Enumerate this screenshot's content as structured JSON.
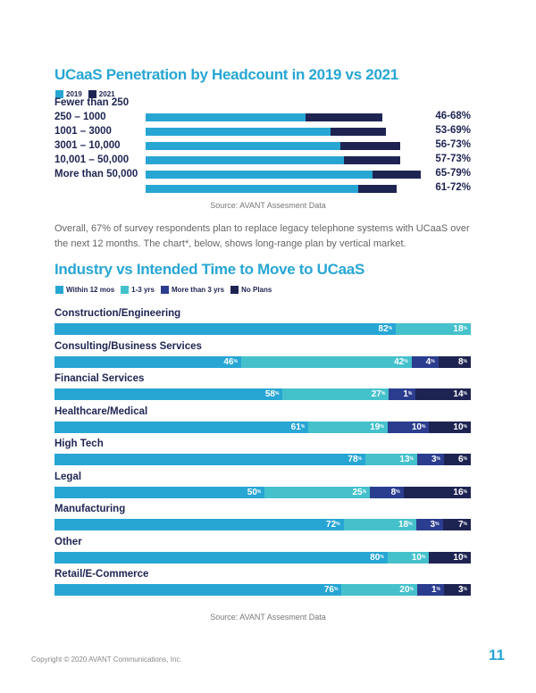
{
  "chart_data": [
    {
      "type": "bar",
      "title": "UCaaS Penetration by Headcount in 2019 vs 2021",
      "legend": [
        "2019",
        "2021"
      ],
      "colors": {
        "2019": "#27a6d4",
        "2021": "#1e2452"
      },
      "categories": [
        "Fewer than 250",
        "250 – 1000",
        "1001 – 3000",
        "3001 – 10,000",
        "10,001 – 50,000",
        "More than 50,000"
      ],
      "value_labels": [
        "46-68%",
        "53-69%",
        "56-73%",
        "57-73%",
        "65-79%",
        "61-72%"
      ],
      "series": [
        {
          "name": "2019",
          "values": [
            46,
            53,
            56,
            57,
            65,
            61
          ]
        },
        {
          "name": "2021",
          "values": [
            68,
            69,
            73,
            73,
            79,
            72
          ]
        }
      ],
      "source": "Source: AVANT Assesment Data"
    },
    {
      "type": "bar",
      "stacked": true,
      "orientation": "horizontal",
      "title": "Industry vs Intended Time to Move to UCaaS",
      "legend": [
        "Within 12 mos",
        "1-3 yrs",
        "More than 3 yrs",
        "No Plans"
      ],
      "colors": [
        "#27a6d4",
        "#45c1cc",
        "#2b3d8f",
        "#1e2452"
      ],
      "categories": [
        "Construction/Engineering",
        "Consulting/Business Services",
        "Financial Services",
        "Healthcare/Medical",
        "High Tech",
        "Legal",
        "Manufacturing",
        "Other",
        "Retail/E-Commerce"
      ],
      "series": [
        {
          "name": "Within 12 mos",
          "values": [
            82,
            46,
            58,
            61,
            78,
            50,
            72,
            80,
            76
          ]
        },
        {
          "name": "1-3 yrs",
          "values": [
            18,
            42,
            27,
            19,
            13,
            25,
            18,
            10,
            20
          ]
        },
        {
          "name": "More than 3 yrs",
          "values": [
            0,
            4,
            1,
            10,
            3,
            8,
            3,
            0,
            1
          ]
        },
        {
          "name": "No Plans",
          "values": [
            0,
            8,
            14,
            10,
            6,
            16,
            7,
            10,
            3
          ]
        }
      ],
      "unit": "%",
      "source": "Source: AVANT Assesment Data"
    }
  ],
  "paragraph": "Overall, 67% of survey respondents plan to replace legacy telephone systems with UCaaS over the next 12 months. The chart*, below, shows long-range plan by vertical market.",
  "footer": {
    "copyright": "Copyright © 2020 AVANT Communications, Inc.",
    "page_number": "11"
  }
}
